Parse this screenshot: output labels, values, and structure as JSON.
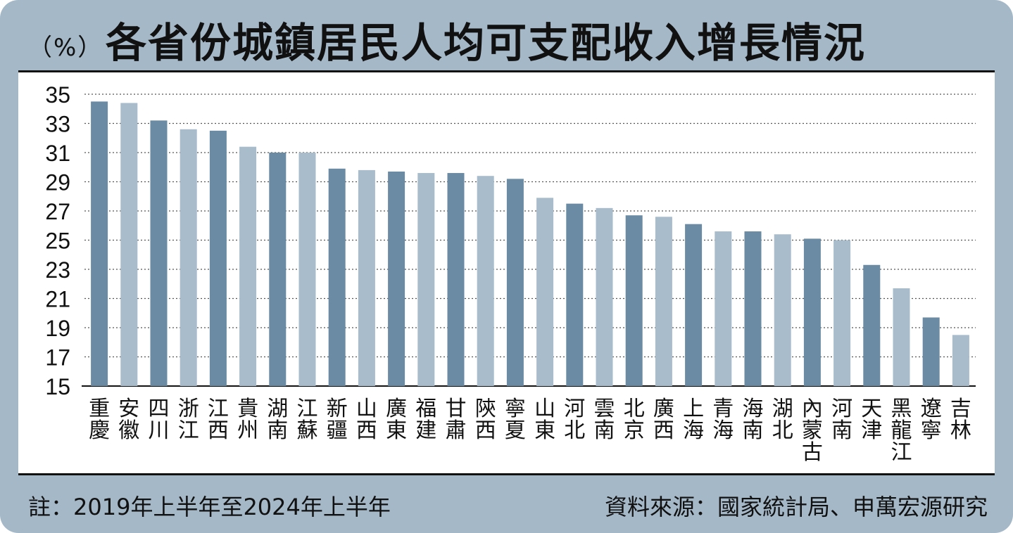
{
  "header": {
    "unit": "（%）",
    "title": "各省份城鎮居民人均可支配收入增長情況"
  },
  "footer": {
    "note": "註：2019年上半年至2024年上半年",
    "source": "資料來源：國家統計局、申萬宏源研究"
  },
  "colors": {
    "frame": "#a5b8c7",
    "bar_dark": "#6a8ba3",
    "bar_light": "#a8bccc"
  },
  "chart_data": {
    "type": "bar",
    "title": "各省份城鎮居民人均可支配收入增長情況",
    "xlabel": "",
    "ylabel": "（%）",
    "ylim": [
      15,
      35
    ],
    "yticks": [
      15,
      17,
      19,
      21,
      23,
      25,
      27,
      29,
      31,
      33,
      35
    ],
    "grid": true,
    "categories": [
      "重慶",
      "安徽",
      "四川",
      "浙江",
      "江西",
      "貴州",
      "湖南",
      "江蘇",
      "新疆",
      "山西",
      "廣東",
      "福建",
      "甘肅",
      "陝西",
      "寧夏",
      "山東",
      "河北",
      "雲南",
      "北京",
      "廣西",
      "上海",
      "青海",
      "海南",
      "湖北",
      "內蒙古",
      "河南",
      "天津",
      "黑龍江",
      "遼寧",
      "吉林"
    ],
    "values": [
      34.5,
      34.4,
      33.2,
      32.6,
      32.5,
      31.4,
      31.0,
      31.0,
      29.9,
      29.8,
      29.7,
      29.6,
      29.6,
      29.4,
      29.2,
      27.9,
      27.5,
      27.2,
      26.7,
      26.6,
      26.1,
      25.6,
      25.6,
      25.4,
      25.1,
      25.0,
      23.3,
      21.7,
      19.7,
      18.5
    ]
  }
}
